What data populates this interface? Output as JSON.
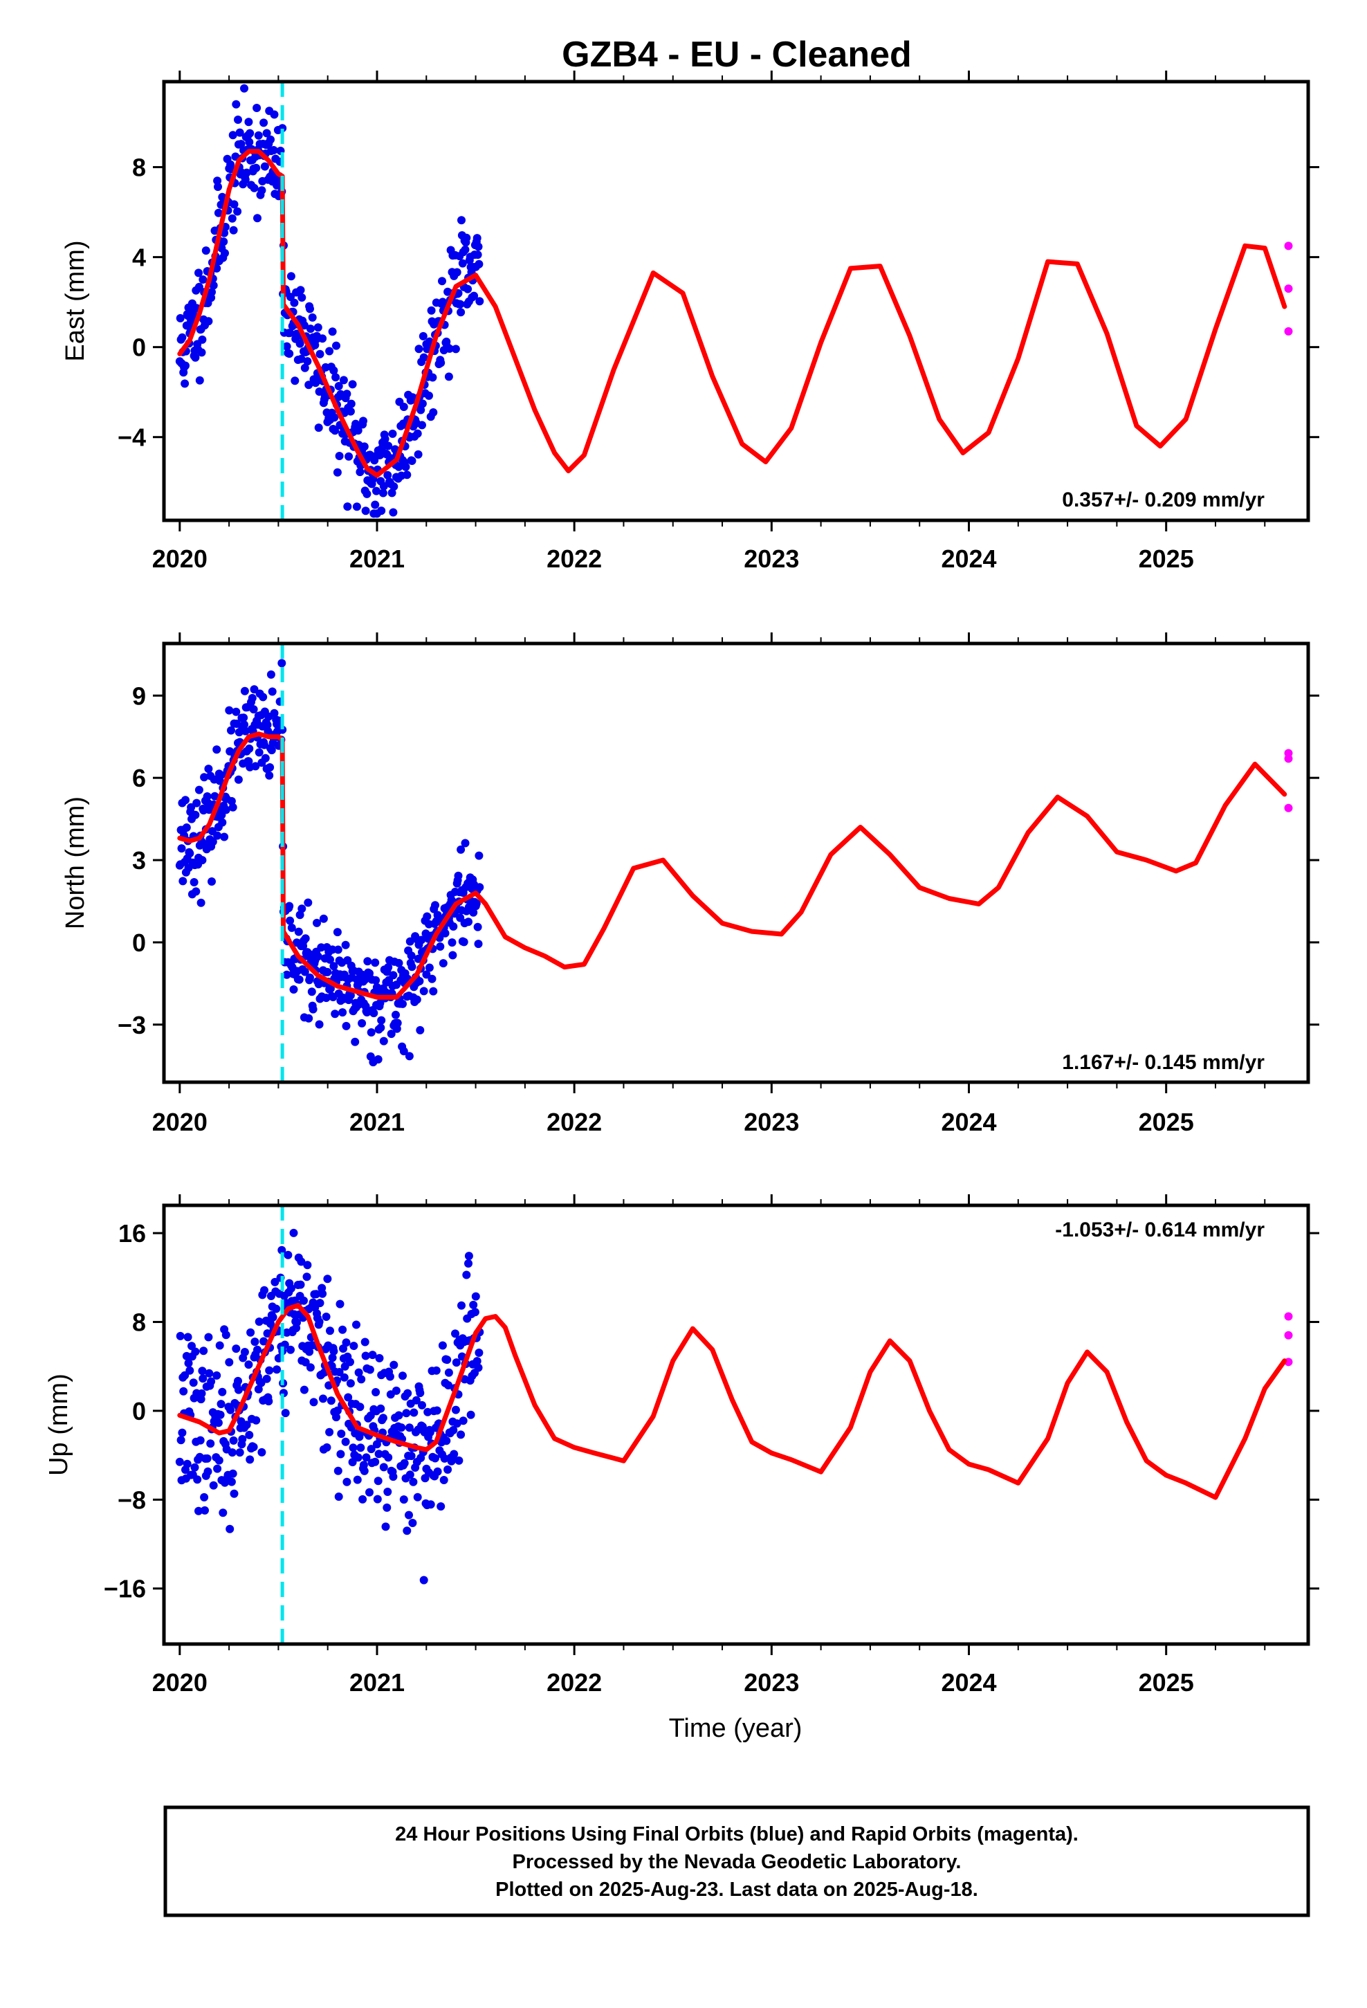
{
  "title": "GZB4  - EU - Cleaned",
  "xlabel": "Time (year)",
  "caption": [
    "24 Hour Positions Using Final Orbits (blue) and Rapid Orbits (magenta).",
    "Processed by the Nevada Geodetic Laboratory.",
    "Plotted on 2025-Aug-23. Last data on 2025-Aug-18."
  ],
  "colors": {
    "final_orbits": "#0000ee",
    "rapid_orbits": "#ff00ff",
    "model": "#ff0000",
    "event_line": "#00e5ee"
  },
  "chart_data": [
    {
      "type": "scatter",
      "component": "east",
      "ylabel": "East (mm)",
      "rate_text": "0.357+/- 0.209 mm/yr",
      "xlim": [
        2019.92,
        2025.72
      ],
      "ylim": [
        -7.7,
        11.8
      ],
      "xticks": [
        2020,
        2021,
        2022,
        2023,
        2024,
        2025
      ],
      "xtick_labels": [
        "2020",
        "2021",
        "2022",
        "2023",
        "2024",
        "2025"
      ],
      "yticks": [
        -4,
        0,
        4,
        8
      ],
      "ytick_labels": [
        "−4",
        "0",
        "4",
        "8"
      ],
      "event_line_x": 2020.52,
      "model": {
        "x": [
          2020.0,
          2020.05,
          2020.1,
          2020.15,
          2020.2,
          2020.25,
          2020.3,
          2020.35,
          2020.4,
          2020.45,
          2020.5,
          2020.52,
          2020.525,
          2020.6,
          2020.7,
          2020.8,
          2020.9,
          2020.95,
          2021.0,
          2021.1,
          2021.2,
          2021.3,
          2021.4,
          2021.5,
          2021.6,
          2021.7,
          2021.8,
          2021.9,
          2021.97,
          2022.05,
          2022.2,
          2022.4,
          2022.55,
          2022.7,
          2022.85,
          2022.97,
          2023.1,
          2023.25,
          2023.4,
          2023.55,
          2023.7,
          2023.85,
          2023.97,
          2024.1,
          2024.25,
          2024.4,
          2024.55,
          2024.7,
          2024.85,
          2024.97,
          2025.1,
          2025.25,
          2025.4,
          2025.5,
          2025.6
        ],
        "y": [
          -0.3,
          0.3,
          1.5,
          3.0,
          5.0,
          7.0,
          8.3,
          8.7,
          8.7,
          8.3,
          7.7,
          7.6,
          1.9,
          1.0,
          -0.8,
          -2.8,
          -4.6,
          -5.4,
          -5.7,
          -5.0,
          -2.5,
          0.5,
          2.7,
          3.2,
          1.8,
          -0.5,
          -2.8,
          -4.7,
          -5.5,
          -4.8,
          -1.0,
          3.3,
          2.4,
          -1.3,
          -4.3,
          -5.1,
          -3.6,
          0.2,
          3.5,
          3.6,
          0.5,
          -3.2,
          -4.7,
          -3.8,
          -0.5,
          3.8,
          3.7,
          0.6,
          -3.5,
          -4.4,
          -3.2,
          0.8,
          4.5,
          4.4,
          1.8
        ]
      },
      "rapid_points": {
        "x": [
          2025.62,
          2025.62,
          2025.62
        ],
        "y": [
          4.5,
          2.6,
          0.7
        ]
      },
      "final_points": {
        "n": 480,
        "x_start": 2020.0,
        "x_end": 2021.52,
        "step_x": 2020.52,
        "step_before": 7.6,
        "step_after": 1.9,
        "spread": 1.2,
        "ylim": [
          -7.4,
          11.5
        ],
        "seed": 11
      }
    },
    {
      "type": "scatter",
      "component": "north",
      "ylabel": "North (mm)",
      "rate_text": "1.167+/- 0.145 mm/yr",
      "xlim": [
        2019.92,
        2025.72
      ],
      "ylim": [
        -5.1,
        10.9
      ],
      "xticks": [
        2020,
        2021,
        2022,
        2023,
        2024,
        2025
      ],
      "xtick_labels": [
        "2020",
        "2021",
        "2022",
        "2023",
        "2024",
        "2025"
      ],
      "yticks": [
        -3,
        0,
        3,
        6,
        9
      ],
      "ytick_labels": [
        "−3",
        "0",
        "3",
        "6",
        "9"
      ],
      "event_line_x": 2020.52,
      "model": {
        "x": [
          2020.0,
          2020.05,
          2020.1,
          2020.15,
          2020.2,
          2020.25,
          2020.3,
          2020.35,
          2020.4,
          2020.45,
          2020.5,
          2020.52,
          2020.525,
          2020.6,
          2020.7,
          2020.8,
          2020.9,
          2021.0,
          2021.1,
          2021.2,
          2021.3,
          2021.4,
          2021.5,
          2021.55,
          2021.65,
          2021.75,
          2021.85,
          2021.95,
          2022.05,
          2022.15,
          2022.3,
          2022.45,
          2022.6,
          2022.75,
          2022.9,
          2023.05,
          2023.15,
          2023.3,
          2023.45,
          2023.6,
          2023.75,
          2023.9,
          2024.05,
          2024.15,
          2024.3,
          2024.45,
          2024.6,
          2024.75,
          2024.9,
          2025.05,
          2025.15,
          2025.3,
          2025.45,
          2025.6
        ],
        "y": [
          3.8,
          3.7,
          3.8,
          4.3,
          5.2,
          6.2,
          7.0,
          7.5,
          7.6,
          7.5,
          7.5,
          7.4,
          0.4,
          -0.5,
          -1.2,
          -1.6,
          -1.8,
          -2.0,
          -2.0,
          -1.2,
          0.3,
          1.4,
          1.8,
          1.4,
          0.2,
          -0.2,
          -0.5,
          -0.9,
          -0.8,
          0.5,
          2.7,
          3.0,
          1.7,
          0.7,
          0.4,
          0.3,
          1.1,
          3.2,
          4.2,
          3.2,
          2.0,
          1.6,
          1.4,
          2.0,
          4.0,
          5.3,
          4.6,
          3.3,
          3.0,
          2.6,
          2.9,
          5.0,
          6.5,
          5.4
        ]
      },
      "rapid_points": {
        "x": [
          2025.62,
          2025.62,
          2025.62
        ],
        "y": [
          6.9,
          6.7,
          4.9
        ]
      },
      "final_points": {
        "n": 480,
        "x_start": 2020.0,
        "x_end": 2021.52,
        "step_x": 2020.52,
        "step_before": 7.5,
        "step_after": 0.4,
        "spread": 0.9,
        "ylim": [
          -4.8,
          10.6
        ],
        "seed": 23
      }
    },
    {
      "type": "scatter",
      "component": "up",
      "ylabel": "Up (mm)",
      "rate_text": "-1.053+/- 0.614 mm/yr",
      "xlim": [
        2019.92,
        2025.72
      ],
      "ylim": [
        -21.0,
        18.5
      ],
      "xticks": [
        2020,
        2021,
        2022,
        2023,
        2024,
        2025
      ],
      "xtick_labels": [
        "2020",
        "2021",
        "2022",
        "2023",
        "2024",
        "2025"
      ],
      "yticks": [
        -16,
        -8,
        0,
        8,
        16
      ],
      "ytick_labels": [
        "−16",
        "−8",
        "0",
        "8",
        "16"
      ],
      "event_line_x": 2020.52,
      "model": {
        "x": [
          2020.0,
          2020.1,
          2020.2,
          2020.25,
          2020.3,
          2020.4,
          2020.5,
          2020.55,
          2020.6,
          2020.65,
          2020.7,
          2020.8,
          2020.9,
          2021.0,
          2021.1,
          2021.2,
          2021.25,
          2021.3,
          2021.4,
          2021.5,
          2021.55,
          2021.6,
          2021.65,
          2021.7,
          2021.8,
          2021.9,
          2022.0,
          2022.1,
          2022.25,
          2022.4,
          2022.5,
          2022.6,
          2022.7,
          2022.8,
          2022.9,
          2023.0,
          2023.1,
          2023.25,
          2023.4,
          2023.5,
          2023.6,
          2023.7,
          2023.8,
          2023.9,
          2024.0,
          2024.1,
          2024.25,
          2024.4,
          2024.5,
          2024.6,
          2024.7,
          2024.8,
          2024.9,
          2025.0,
          2025.1,
          2025.25,
          2025.4,
          2025.5,
          2025.6
        ],
        "y": [
          -0.4,
          -1.0,
          -2.0,
          -1.8,
          0.0,
          4.0,
          8.0,
          9.2,
          9.5,
          8.5,
          6.0,
          1.5,
          -1.5,
          -2.2,
          -2.8,
          -3.3,
          -3.5,
          -2.8,
          2.0,
          7.0,
          8.3,
          8.5,
          7.5,
          5.0,
          0.5,
          -2.5,
          -3.3,
          -3.8,
          -4.5,
          -0.5,
          4.5,
          7.4,
          5.5,
          1.0,
          -2.8,
          -3.8,
          -4.4,
          -5.5,
          -1.5,
          3.5,
          6.3,
          4.5,
          0.0,
          -3.5,
          -4.8,
          -5.3,
          -6.5,
          -2.5,
          2.5,
          5.3,
          3.5,
          -1.0,
          -4.5,
          -5.8,
          -6.5,
          -7.8,
          -2.5,
          2.0,
          4.5
        ]
      },
      "rapid_points": {
        "x": [
          2025.62,
          2025.62,
          2025.62
        ],
        "y": [
          8.5,
          6.8,
          4.4
        ]
      },
      "final_points": {
        "n": 480,
        "x_start": 2020.0,
        "x_end": 2021.52,
        "step_x": 2020.52,
        "step_before": 8.0,
        "step_after": 8.0,
        "spread": 3.8,
        "ylim": [
          -20.5,
          18.0
        ],
        "seed": 37
      }
    }
  ]
}
